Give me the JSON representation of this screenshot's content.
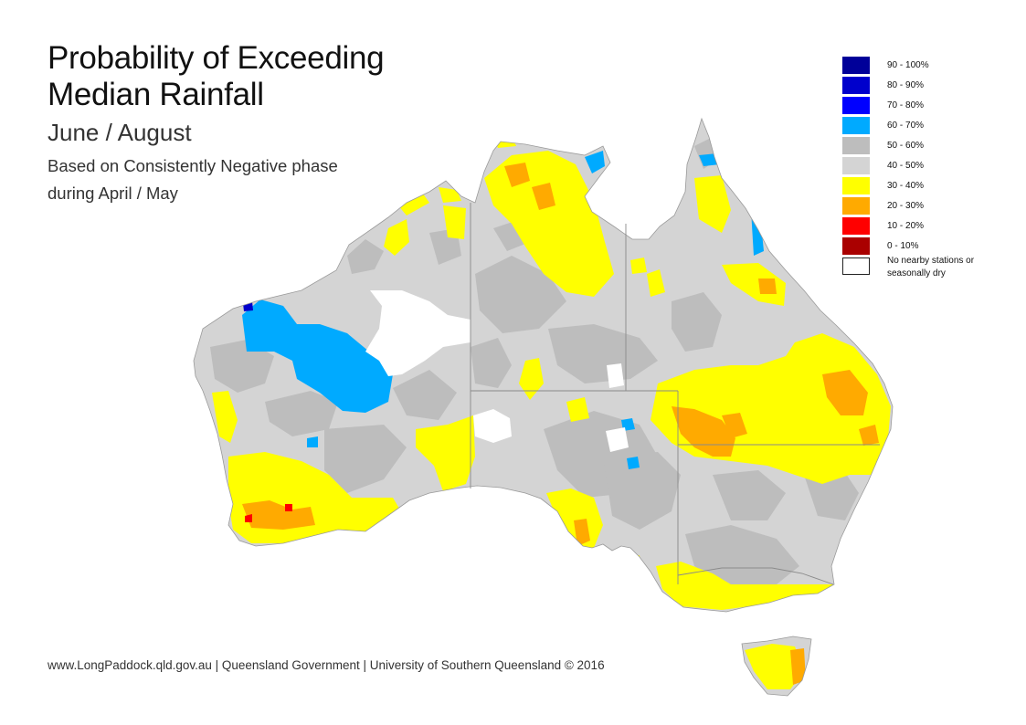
{
  "title": {
    "line1": "Probability of Exceeding",
    "line2": "Median Rainfall",
    "subtitle": "June / August",
    "desc1": "Based on Consistently Negative phase",
    "desc2": "during April / May"
  },
  "legend": [
    {
      "label": "90 - 100%",
      "color": "#000099"
    },
    {
      "label": "80 - 90%",
      "color": "#0000cc"
    },
    {
      "label": "70 - 80%",
      "color": "#0000ff"
    },
    {
      "label": "60 - 70%",
      "color": "#00aaff"
    },
    {
      "label": "50 - 60%",
      "color": "#bdbdbd"
    },
    {
      "label": "40 - 50%",
      "color": "#d4d4d4"
    },
    {
      "label": "30 - 40%",
      "color": "#ffff00"
    },
    {
      "label": "20 - 30%",
      "color": "#ffaa00"
    },
    {
      "label": "10 - 20%",
      "color": "#ff0000"
    },
    {
      "label": "0 - 10%",
      "color": "#aa0000"
    },
    {
      "label": "No nearby stations or seasonally dry",
      "color": "#ffffff"
    }
  ],
  "footer": "www.LongPaddock.qld.gov.au | Queensland Government | University of Southern Queensland © 2016"
}
